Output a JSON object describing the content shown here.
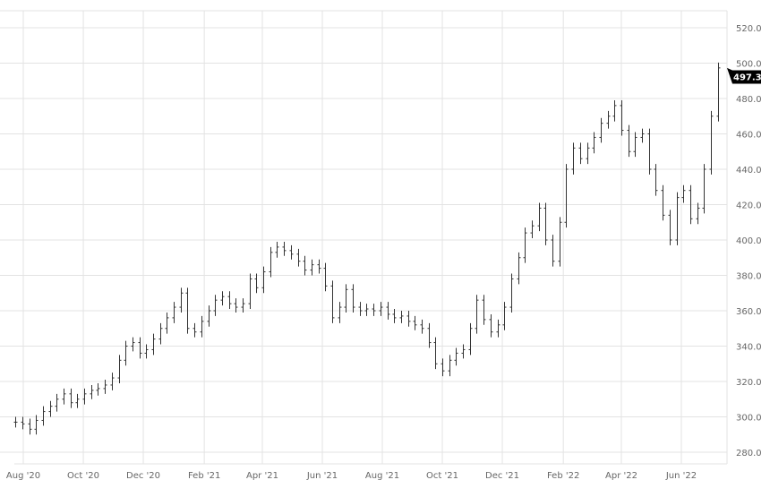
{
  "chart_data": {
    "type": "ohlc",
    "title": "",
    "xlabel": "",
    "ylabel": "",
    "ylim": [
      280,
      520
    ],
    "yticks": [
      "280.0",
      "300.0",
      "320.0",
      "340.0",
      "360.0",
      "380.0",
      "400.0",
      "420.0",
      "440.0",
      "460.0",
      "480.0",
      "500.0",
      "520.0"
    ],
    "xticks": [
      {
        "date": "2020-08-01",
        "label": "Aug '20"
      },
      {
        "date": "2020-10-01",
        "label": "Oct '20"
      },
      {
        "date": "2020-12-01",
        "label": "Dec '20"
      },
      {
        "date": "2021-02-01",
        "label": "Feb '21"
      },
      {
        "date": "2021-04-01",
        "label": "Apr '21"
      },
      {
        "date": "2021-06-01",
        "label": "Jun '21"
      },
      {
        "date": "2021-08-01",
        "label": "Aug '21"
      },
      {
        "date": "2021-10-01",
        "label": "Oct '21"
      },
      {
        "date": "2021-12-01",
        "label": "Dec '21"
      },
      {
        "date": "2022-02-01",
        "label": "Feb '22"
      },
      {
        "date": "2022-04-01",
        "label": "Apr '22"
      },
      {
        "date": "2022-06-01",
        "label": "Jun '22"
      }
    ],
    "xlim": [
      "2020-07-23",
      "2022-07-15"
    ],
    "grid": true,
    "y_axis_position": "right",
    "last_price_label": "497.3",
    "colors": {
      "bars": "#333333",
      "last_label_bg": "#000000",
      "grid": "#e3e3e3"
    },
    "dates": [
      "2020-07-24",
      "2020-07-31",
      "2020-08-07",
      "2020-08-14",
      "2020-08-21",
      "2020-08-28",
      "2020-09-04",
      "2020-09-11",
      "2020-09-18",
      "2020-09-25",
      "2020-10-02",
      "2020-10-09",
      "2020-10-16",
      "2020-10-23",
      "2020-10-30",
      "2020-11-06",
      "2020-11-13",
      "2020-11-20",
      "2020-11-27",
      "2020-12-04",
      "2020-12-11",
      "2020-12-18",
      "2020-12-25",
      "2021-01-01",
      "2021-01-08",
      "2021-01-15",
      "2021-01-22",
      "2021-01-29",
      "2021-02-05",
      "2021-02-12",
      "2021-02-19",
      "2021-02-26",
      "2021-03-05",
      "2021-03-12",
      "2021-03-19",
      "2021-03-26",
      "2021-04-02",
      "2021-04-09",
      "2021-04-16",
      "2021-04-23",
      "2021-04-30",
      "2021-05-07",
      "2021-05-14",
      "2021-05-21",
      "2021-05-28",
      "2021-06-04",
      "2021-06-11",
      "2021-06-18",
      "2021-06-25",
      "2021-07-02",
      "2021-07-09",
      "2021-07-16",
      "2021-07-23",
      "2021-07-30",
      "2021-08-06",
      "2021-08-13",
      "2021-08-20",
      "2021-08-27",
      "2021-09-03",
      "2021-09-10",
      "2021-09-17",
      "2021-09-24",
      "2021-10-01",
      "2021-10-08",
      "2021-10-15",
      "2021-10-22",
      "2021-10-29",
      "2021-11-05",
      "2021-11-12",
      "2021-11-19",
      "2021-11-26",
      "2021-12-03",
      "2021-12-10",
      "2021-12-17",
      "2021-12-24",
      "2021-12-31",
      "2022-01-07",
      "2022-01-14",
      "2022-01-21",
      "2022-01-28",
      "2022-02-04",
      "2022-02-11",
      "2022-02-18",
      "2022-02-25",
      "2022-03-04",
      "2022-03-11",
      "2022-03-18",
      "2022-03-25",
      "2022-04-01",
      "2022-04-08",
      "2022-04-15",
      "2022-04-22",
      "2022-04-29",
      "2022-05-06",
      "2022-05-13",
      "2022-05-20",
      "2022-05-27",
      "2022-06-03",
      "2022-06-10",
      "2022-06-17",
      "2022-06-24",
      "2022-07-01",
      "2022-07-08"
    ],
    "close": [
      297,
      296,
      293,
      298,
      303,
      306,
      310,
      313,
      308,
      310,
      313,
      315,
      316,
      318,
      322,
      332,
      340,
      342,
      336,
      338,
      344,
      350,
      356,
      362,
      370,
      350,
      348,
      354,
      360,
      366,
      368,
      364,
      362,
      364,
      378,
      373,
      382,
      393,
      396,
      394,
      392,
      388,
      383,
      386,
      384,
      374,
      356,
      362,
      372,
      362,
      360,
      361,
      360,
      362,
      358,
      356,
      357,
      354,
      352,
      350,
      342,
      330,
      326,
      332,
      336,
      338,
      350,
      366,
      355,
      348,
      352,
      362,
      378,
      390,
      404,
      408,
      418,
      400,
      388,
      410,
      440,
      452,
      446,
      452,
      458,
      466,
      470,
      476,
      462,
      450,
      458,
      460,
      440,
      428,
      414,
      400,
      424,
      428,
      412,
      418,
      440,
      470,
      497.3
    ]
  }
}
